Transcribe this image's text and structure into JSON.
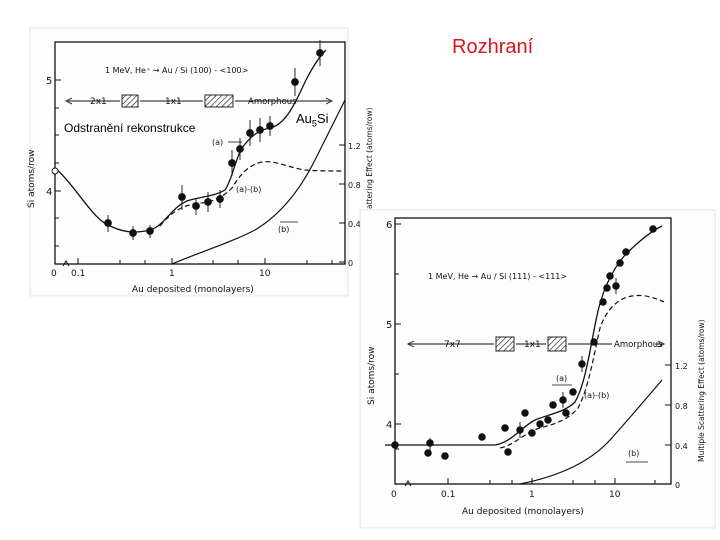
{
  "slide": {
    "title": "Rozhraní",
    "label_reconstruction": "Odstranění rekonstrukce",
    "label_silicide": "Au",
    "label_silicide_sub": "5",
    "label_silicide_tail": "Si"
  },
  "figure_top": {
    "legend": "1 MeV, He⁺ → Au / Si (100) - <100>",
    "phases": [
      "2x1",
      "1x1",
      "Amorphous"
    ],
    "xlabel": "Au deposited (monolayers)",
    "ylabel_left": "Si atoms/row",
    "ylabel_right": "Multiple Scattering Effect (atoms/row)",
    "x_ticks": [
      "0",
      "0.1",
      "1",
      "10"
    ],
    "y_ticks_left": [
      "4",
      "5"
    ],
    "y_ticks_right": [
      "0",
      "0.4",
      "0.8",
      "1.2"
    ],
    "curve_labels": [
      "(a)",
      "(a)-(b)",
      "(b)"
    ]
  },
  "figure_bottom": {
    "legend": "1 MeV, He → Au / Si (111) - <111>",
    "phases": [
      "7x7",
      "1x1",
      "Amorphous"
    ],
    "xlabel": "Au deposited (monolayers)",
    "ylabel_left": "Si atoms/row",
    "ylabel_right": "Multiple Scattering Effect (atoms/row)",
    "x_ticks": [
      "0",
      "0.1",
      "1",
      "10"
    ],
    "y_ticks_left": [
      "4",
      "5",
      "6"
    ],
    "y_ticks_right": [
      "0",
      "0.4",
      "0.8",
      "1.2"
    ],
    "curve_labels": [
      "(a)",
      "(a)-(b)",
      "(b)"
    ]
  }
}
